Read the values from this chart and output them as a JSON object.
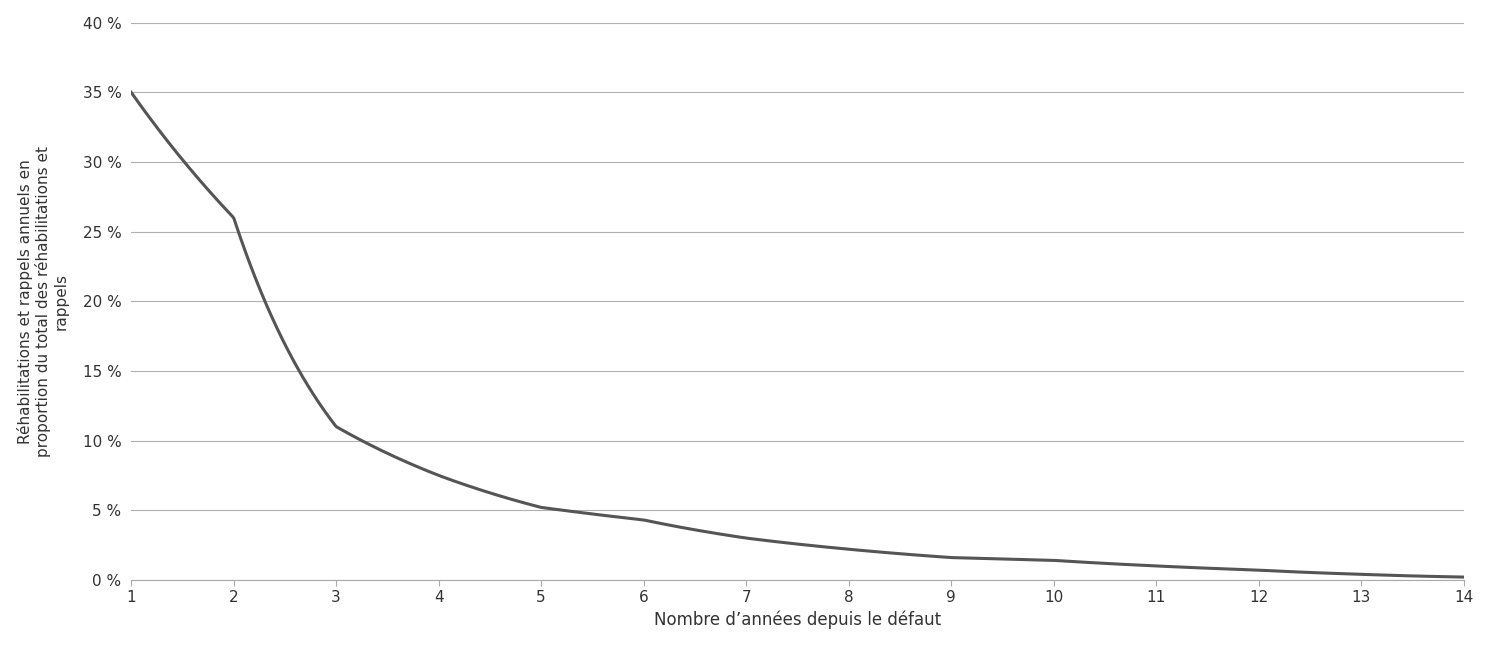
{
  "x": [
    1,
    2,
    3,
    4,
    5,
    6,
    7,
    8,
    9,
    10,
    11,
    12,
    13,
    14
  ],
  "y": [
    0.35,
    0.26,
    0.11,
    0.075,
    0.052,
    0.043,
    0.03,
    0.022,
    0.016,
    0.014,
    0.01,
    0.007,
    0.004,
    0.002
  ],
  "line_color": "#555555",
  "line_width": 2.2,
  "xlabel": "Nombre d’années depuis le défaut",
  "ylabel": "Réhabilitations et rappels annuels en\nproportion du total des réhabilitations et\nrappels",
  "xlim": [
    1,
    14
  ],
  "ylim": [
    0,
    0.4
  ],
  "yticks": [
    0.0,
    0.05,
    0.1,
    0.15,
    0.2,
    0.25,
    0.3,
    0.35,
    0.4
  ],
  "ytick_labels": [
    "0 %",
    "5 %",
    "10 %",
    "15 %",
    "20 %",
    "25 %",
    "30 %",
    "35 %",
    "40 %"
  ],
  "xticks": [
    1,
    2,
    3,
    4,
    5,
    6,
    7,
    8,
    9,
    10,
    11,
    12,
    13,
    14
  ],
  "grid_color": "#b0b0b0",
  "background_color": "#ffffff",
  "xlabel_fontsize": 12,
  "ylabel_fontsize": 11,
  "tick_fontsize": 11
}
